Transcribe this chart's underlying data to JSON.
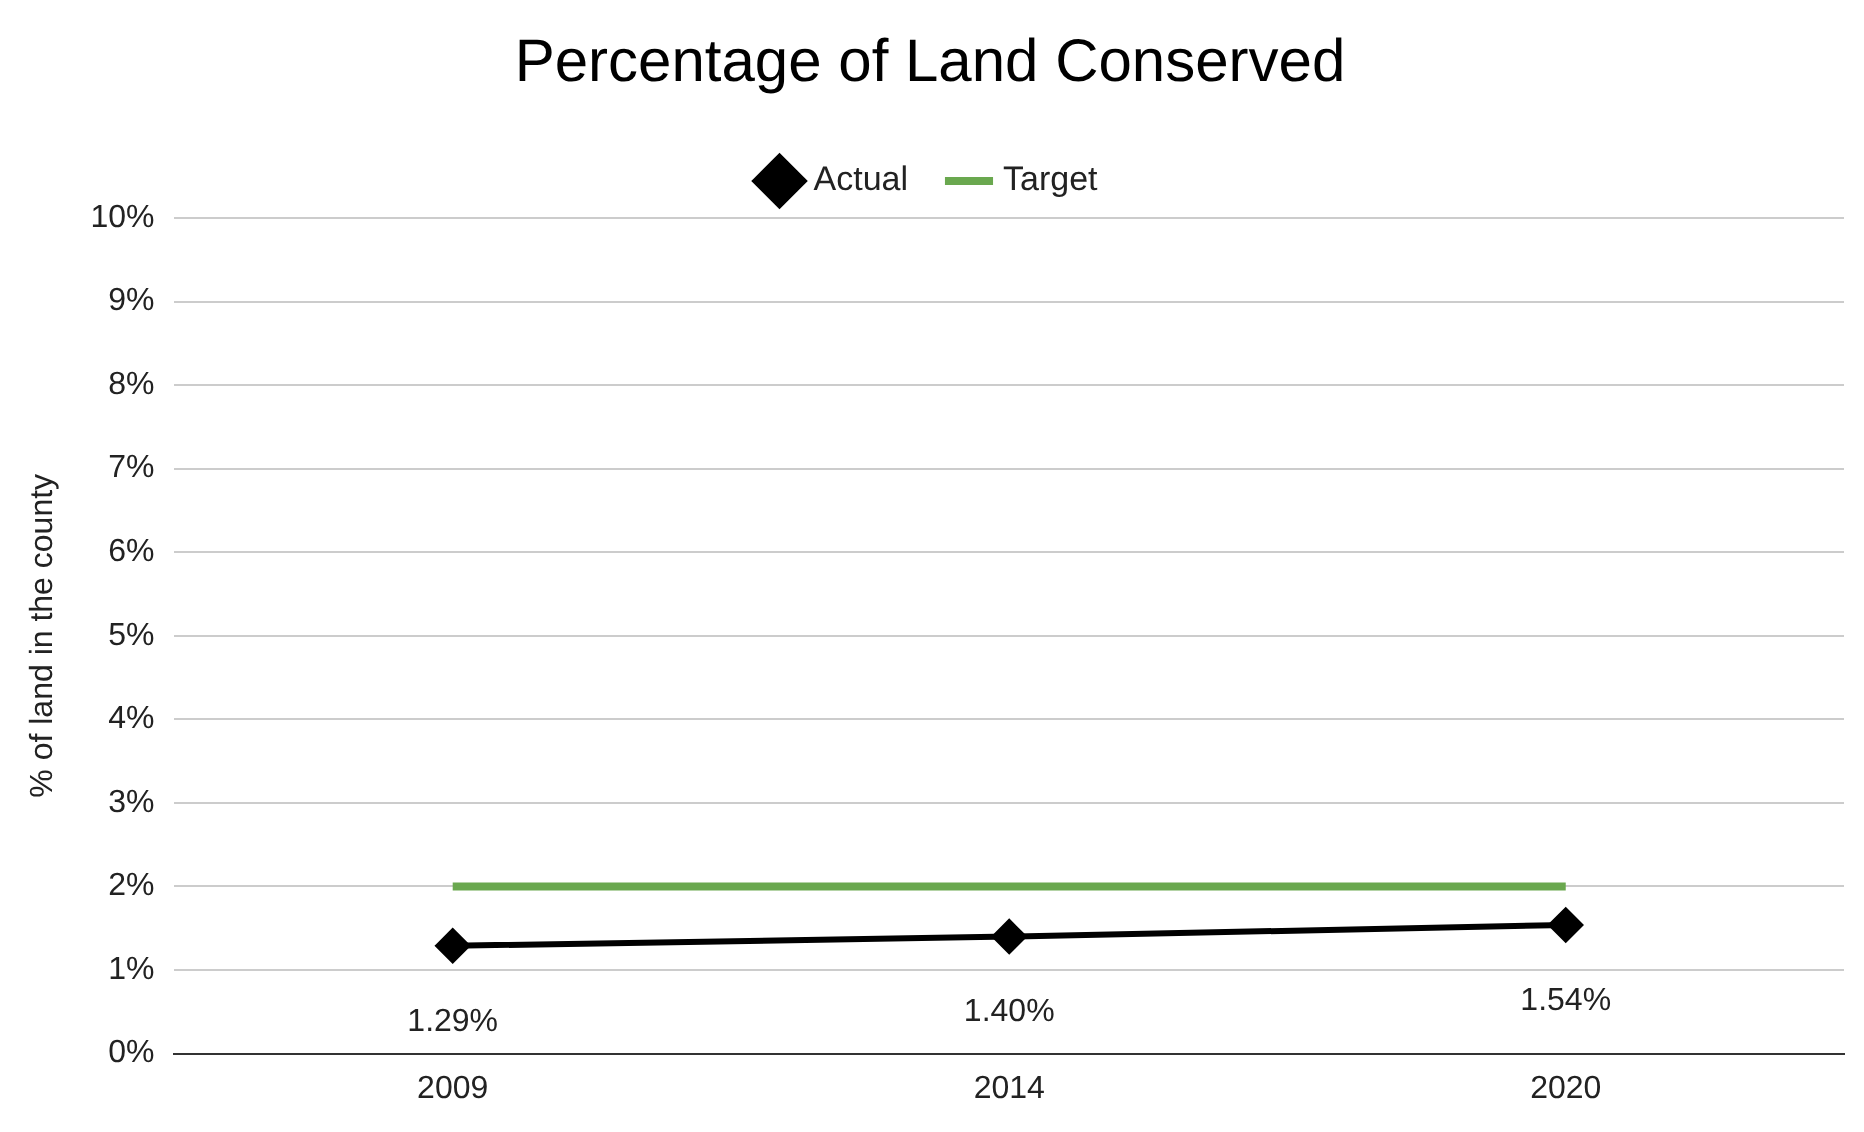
{
  "chart_data": {
    "type": "line",
    "title": "Percentage of Land Conserved",
    "ylabel": "% of land in the county",
    "categories": [
      "2009",
      "2014",
      "2020"
    ],
    "series": [
      {
        "name": "Actual",
        "color": "#000000",
        "values": [
          1.29,
          1.4,
          1.54
        ],
        "marker": "diamond",
        "value_labels": [
          "1.29%",
          "1.40%",
          "1.54%"
        ]
      },
      {
        "name": "Target",
        "color": "#6aa84f",
        "values": [
          2,
          2,
          2
        ],
        "marker": "none"
      }
    ],
    "ylim": [
      0,
      10
    ],
    "yticks": [
      {
        "value": 0,
        "label": "0%"
      },
      {
        "value": 1,
        "label": "1%"
      },
      {
        "value": 2,
        "label": "2%"
      },
      {
        "value": 3,
        "label": "3%"
      },
      {
        "value": 4,
        "label": "4%"
      },
      {
        "value": 5,
        "label": "5%"
      },
      {
        "value": 6,
        "label": "6%"
      },
      {
        "value": 7,
        "label": "7%"
      },
      {
        "value": 8,
        "label": "8%"
      },
      {
        "value": 9,
        "label": "9%"
      },
      {
        "value": 10,
        "label": "10%"
      }
    ],
    "grid": "y",
    "legend": "top"
  }
}
